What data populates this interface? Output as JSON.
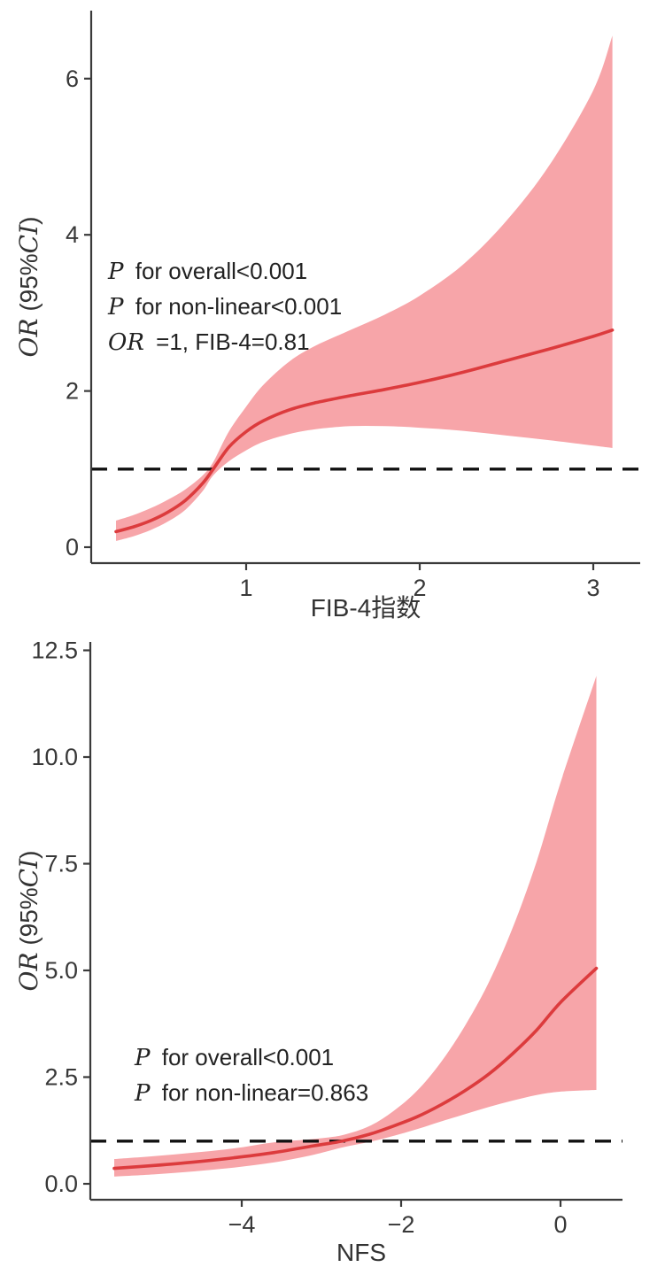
{
  "page": {
    "background": "#ffffff"
  },
  "chart_data": [
    {
      "type": "line",
      "subtype": "restricted-cubic-spline-with-ci-ribbon",
      "title": "",
      "xlabel": "FIB-4指数",
      "ylabel": "OR (95%CI)",
      "ylabel_segments": [
        {
          "t": "OR",
          "it": true
        },
        {
          "t": " (95%",
          "it": false
        },
        {
          "t": "CI",
          "it": true
        },
        {
          "t": ")",
          "it": false
        }
      ],
      "x_ticks": {
        "values": [
          1,
          2,
          3
        ],
        "labels": [
          "1",
          "2",
          "3"
        ]
      },
      "y_ticks": {
        "values": [
          0,
          2,
          4,
          6
        ],
        "labels": [
          "0",
          "2",
          "4",
          "6"
        ]
      },
      "xlim": [
        0.11,
        3.27
      ],
      "ylim": [
        -0.2,
        6.87
      ],
      "grid": false,
      "legend": "none",
      "reference_line_y": 1,
      "x": [
        0.25,
        0.35,
        0.45,
        0.55,
        0.65,
        0.75,
        0.81,
        0.9,
        1.0,
        1.1,
        1.25,
        1.4,
        1.6,
        1.8,
        2.0,
        2.25,
        2.5,
        2.75,
        3.0,
        3.11
      ],
      "series": [
        {
          "name": "OR",
          "values": [
            0.2,
            0.26,
            0.34,
            0.45,
            0.6,
            0.82,
            1.0,
            1.28,
            1.48,
            1.62,
            1.76,
            1.85,
            1.94,
            2.02,
            2.11,
            2.24,
            2.39,
            2.54,
            2.7,
            2.78
          ]
        },
        {
          "name": "95% CI lower",
          "values": [
            0.08,
            0.14,
            0.22,
            0.33,
            0.48,
            0.72,
            0.92,
            1.1,
            1.24,
            1.35,
            1.45,
            1.51,
            1.55,
            1.55,
            1.53,
            1.49,
            1.43,
            1.37,
            1.3,
            1.27
          ]
        },
        {
          "name": "95% CI upper",
          "values": [
            0.34,
            0.41,
            0.5,
            0.61,
            0.74,
            0.92,
            1.09,
            1.48,
            1.8,
            2.08,
            2.38,
            2.58,
            2.78,
            2.98,
            3.22,
            3.62,
            4.18,
            4.9,
            5.85,
            6.55
          ]
        }
      ],
      "annotations": [
        {
          "text": "P for overall<0.001",
          "segments": [
            {
              "t": "P",
              "it": true
            },
            {
              "t": " for overall<0.001",
              "it": false
            }
          ]
        },
        {
          "text": "P for non-linear<0.001",
          "segments": [
            {
              "t": "P",
              "it": true
            },
            {
              "t": " for non-linear<0.001",
              "it": false
            }
          ]
        },
        {
          "text": "OR =1, FIB-4=0.81",
          "segments": [
            {
              "t": "OR",
              "it": true
            },
            {
              "t": " =1, FIB-4=0.81",
              "it": false
            }
          ]
        }
      ],
      "colors": {
        "line": "#dc3b3d",
        "ribbon": "#f7a5a9",
        "reference_line": "#111111",
        "axis": "#3a3a3a",
        "text": "#333333"
      }
    },
    {
      "type": "line",
      "subtype": "restricted-cubic-spline-with-ci-ribbon",
      "title": "",
      "xlabel": "NFS",
      "ylabel": "OR (95%CI)",
      "ylabel_segments": [
        {
          "t": "OR",
          "it": true
        },
        {
          "t": " (95%",
          "it": false
        },
        {
          "t": "CI",
          "it": true
        },
        {
          "t": ")",
          "it": false
        }
      ],
      "x_ticks": {
        "values": [
          -4,
          -2,
          0
        ],
        "labels": [
          "−4",
          "−2",
          "0"
        ]
      },
      "y_ticks": {
        "values": [
          0,
          2.5,
          5,
          7.5,
          10,
          12.5
        ],
        "labels": [
          "0.0",
          "2.5",
          "5.0",
          "7.5",
          "10.0",
          "12.5"
        ]
      },
      "xlim": [
        -5.9,
        0.78
      ],
      "ylim": [
        -0.37,
        12.7
      ],
      "grid": false,
      "legend": "none",
      "reference_line_y": 1,
      "x": [
        -5.6,
        -5.1,
        -4.6,
        -4.1,
        -3.6,
        -3.1,
        -2.74,
        -2.4,
        -2.1,
        -1.8,
        -1.5,
        -1.2,
        -0.9,
        -0.6,
        -0.3,
        0.0,
        0.45
      ],
      "series": [
        {
          "name": "OR",
          "values": [
            0.36,
            0.43,
            0.51,
            0.61,
            0.73,
            0.89,
            1.0,
            1.16,
            1.35,
            1.57,
            1.85,
            2.18,
            2.57,
            3.05,
            3.6,
            4.25,
            5.05
          ]
        },
        {
          "name": "95% CI lower",
          "values": [
            0.17,
            0.22,
            0.29,
            0.38,
            0.5,
            0.68,
            0.85,
            0.98,
            1.12,
            1.28,
            1.46,
            1.63,
            1.8,
            1.95,
            2.08,
            2.16,
            2.2
          ]
        },
        {
          "name": "95% CI upper",
          "values": [
            0.58,
            0.65,
            0.73,
            0.83,
            0.97,
            1.05,
            1.14,
            1.35,
            1.7,
            2.18,
            2.85,
            3.7,
            4.72,
            6.0,
            7.55,
            9.4,
            11.9
          ]
        }
      ],
      "annotations": [
        {
          "text": "P for overall<0.001",
          "segments": [
            {
              "t": "P",
              "it": true
            },
            {
              "t": " for overall<0.001",
              "it": false
            }
          ]
        },
        {
          "text": "P for non-linear=0.863",
          "segments": [
            {
              "t": "P",
              "it": true
            },
            {
              "t": " for non-linear=0.863",
              "it": false
            }
          ]
        }
      ],
      "colors": {
        "line": "#dc3b3d",
        "ribbon": "#f7a5a9",
        "reference_line": "#111111",
        "axis": "#3a3a3a",
        "text": "#333333"
      }
    }
  ]
}
